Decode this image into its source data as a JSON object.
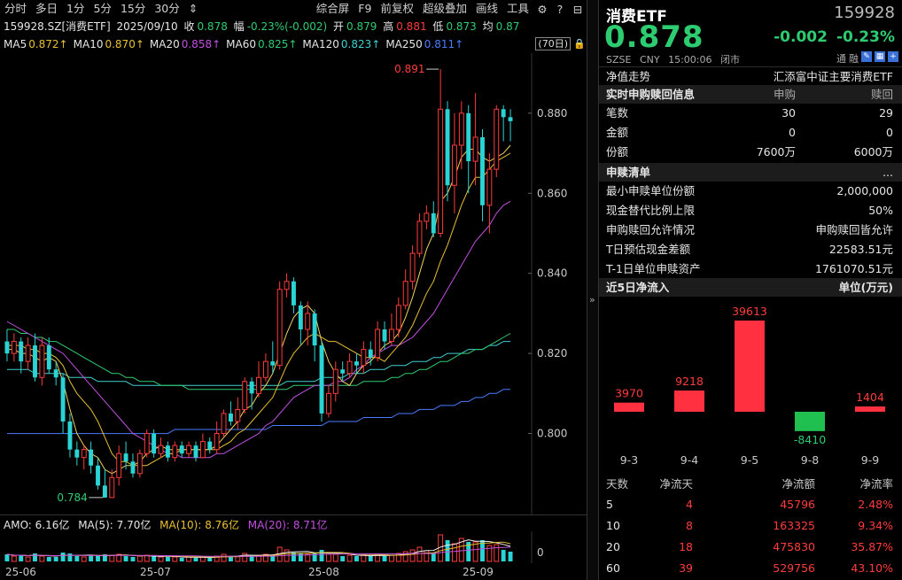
{
  "toolbar": {
    "left": [
      "分时",
      "多日",
      "1分",
      "5分",
      "15分",
      "30分",
      "⇕"
    ],
    "right": [
      "综合屏",
      "F9",
      "前复权",
      "超级叠加",
      "画线",
      "工具"
    ]
  },
  "info": {
    "code": "159928.SZ[消费ETF]",
    "date": "2025/09/10",
    "close_label": "收",
    "close": "0.878",
    "amp_label": "幅",
    "amp": "-0.23%(-0.002)",
    "open_label": "开",
    "open": "0.879",
    "high_label": "高",
    "high": "0.881",
    "low_label": "低",
    "low": "0.873",
    "avg_label": "均",
    "avg": "0.87"
  },
  "ma": [
    {
      "label": "MA5",
      "value": "0.872↑",
      "color": "#e8c030"
    },
    {
      "label": "MA10",
      "value": "0.870↑",
      "color": "#e8c030"
    },
    {
      "label": "MA20",
      "value": "0.858↑",
      "color": "#c050e0"
    },
    {
      "label": "MA60",
      "value": "0.825↑",
      "color": "#2ecc71"
    },
    {
      "label": "MA120",
      "value": "0.823↑",
      "color": "#40d0d0"
    },
    {
      "label": "MA250",
      "value": "0.811↑",
      "color": "#4a7cff"
    }
  ],
  "period_label": "(70日)",
  "annotations": {
    "high": "0.891",
    "low": "0.784"
  },
  "price_axis": {
    "ticks": [
      "0.880",
      "0.860",
      "0.840",
      "0.820",
      "0.800"
    ],
    "tick_values": [
      0.88,
      0.86,
      0.84,
      0.82,
      0.8
    ]
  },
  "chart_data": {
    "type": "candlestick",
    "y_range": [
      0.78,
      0.895
    ],
    "candles": [
      [
        0.823,
        0.82,
        0.826,
        0.818
      ],
      [
        0.82,
        0.823,
        0.825,
        0.818
      ],
      [
        0.823,
        0.818,
        0.824,
        0.815
      ],
      [
        0.818,
        0.822,
        0.824,
        0.816
      ],
      [
        0.822,
        0.814,
        0.825,
        0.813
      ],
      [
        0.814,
        0.822,
        0.824,
        0.812
      ],
      [
        0.822,
        0.816,
        0.824,
        0.815
      ],
      [
        0.816,
        0.814,
        0.818,
        0.812
      ],
      [
        0.814,
        0.803,
        0.815,
        0.8
      ],
      [
        0.803,
        0.796,
        0.805,
        0.794
      ],
      [
        0.796,
        0.794,
        0.798,
        0.792
      ],
      [
        0.794,
        0.796,
        0.797,
        0.791
      ],
      [
        0.796,
        0.792,
        0.798,
        0.79
      ],
      [
        0.792,
        0.787,
        0.794,
        0.786
      ],
      [
        0.787,
        0.784,
        0.791,
        0.784
      ],
      [
        0.784,
        0.789,
        0.791,
        0.784
      ],
      [
        0.789,
        0.795,
        0.797,
        0.787
      ],
      [
        0.795,
        0.793,
        0.798,
        0.791
      ],
      [
        0.793,
        0.79,
        0.795,
        0.789
      ],
      [
        0.79,
        0.795,
        0.796,
        0.789
      ],
      [
        0.795,
        0.8,
        0.801,
        0.794
      ],
      [
        0.8,
        0.795,
        0.801,
        0.794
      ],
      [
        0.795,
        0.797,
        0.799,
        0.794
      ],
      [
        0.797,
        0.794,
        0.798,
        0.793
      ],
      [
        0.794,
        0.797,
        0.798,
        0.793
      ],
      [
        0.797,
        0.795,
        0.798,
        0.794
      ],
      [
        0.795,
        0.797,
        0.798,
        0.794
      ],
      [
        0.797,
        0.794,
        0.798,
        0.793
      ],
      [
        0.794,
        0.798,
        0.8,
        0.794
      ],
      [
        0.798,
        0.796,
        0.799,
        0.795
      ],
      [
        0.796,
        0.8,
        0.803,
        0.795
      ],
      [
        0.8,
        0.805,
        0.806,
        0.799
      ],
      [
        0.805,
        0.803,
        0.808,
        0.802
      ],
      [
        0.803,
        0.806,
        0.809,
        0.801
      ],
      [
        0.806,
        0.813,
        0.814,
        0.805
      ],
      [
        0.813,
        0.81,
        0.814,
        0.806
      ],
      [
        0.81,
        0.814,
        0.818,
        0.809
      ],
      [
        0.814,
        0.818,
        0.82,
        0.813
      ],
      [
        0.818,
        0.817,
        0.823,
        0.815
      ],
      [
        0.817,
        0.836,
        0.838,
        0.816
      ],
      [
        0.836,
        0.838,
        0.84,
        0.834
      ],
      [
        0.838,
        0.832,
        0.839,
        0.83
      ],
      [
        0.832,
        0.826,
        0.833,
        0.822
      ],
      [
        0.826,
        0.83,
        0.833,
        0.822
      ],
      [
        0.83,
        0.822,
        0.831,
        0.818
      ],
      [
        0.822,
        0.805,
        0.823,
        0.803
      ],
      [
        0.805,
        0.81,
        0.812,
        0.804
      ],
      [
        0.81,
        0.816,
        0.818,
        0.808
      ],
      [
        0.816,
        0.815,
        0.818,
        0.813
      ],
      [
        0.815,
        0.818,
        0.82,
        0.814
      ],
      [
        0.818,
        0.817,
        0.82,
        0.815
      ],
      [
        0.817,
        0.821,
        0.823,
        0.815
      ],
      [
        0.821,
        0.819,
        0.823,
        0.817
      ],
      [
        0.819,
        0.826,
        0.828,
        0.818
      ],
      [
        0.826,
        0.823,
        0.828,
        0.821
      ],
      [
        0.823,
        0.826,
        0.83,
        0.822
      ],
      [
        0.826,
        0.832,
        0.834,
        0.824
      ],
      [
        0.832,
        0.838,
        0.841,
        0.831
      ],
      [
        0.838,
        0.845,
        0.847,
        0.836
      ],
      [
        0.845,
        0.853,
        0.855,
        0.844
      ],
      [
        0.853,
        0.855,
        0.857,
        0.851
      ],
      [
        0.855,
        0.85,
        0.858,
        0.849
      ],
      [
        0.85,
        0.881,
        0.891,
        0.849
      ],
      [
        0.881,
        0.862,
        0.883,
        0.858
      ],
      [
        0.862,
        0.872,
        0.88,
        0.855
      ],
      [
        0.872,
        0.88,
        0.883,
        0.866
      ],
      [
        0.88,
        0.868,
        0.882,
        0.86
      ],
      [
        0.868,
        0.874,
        0.885,
        0.862
      ],
      [
        0.874,
        0.857,
        0.876,
        0.853
      ],
      [
        0.857,
        0.866,
        0.87,
        0.85
      ],
      [
        0.866,
        0.881,
        0.882,
        0.864
      ],
      [
        0.881,
        0.879,
        0.882,
        0.873
      ],
      [
        0.879,
        0.878,
        0.881,
        0.873
      ]
    ],
    "ma5": [
      0.821,
      0.821,
      0.82,
      0.82,
      0.819,
      0.818,
      0.819,
      0.818,
      0.813,
      0.806,
      0.8,
      0.797,
      0.795,
      0.794,
      0.791,
      0.79,
      0.791,
      0.792,
      0.792,
      0.793,
      0.795,
      0.796,
      0.797,
      0.796,
      0.796,
      0.796,
      0.796,
      0.796,
      0.796,
      0.796,
      0.797,
      0.799,
      0.801,
      0.803,
      0.806,
      0.807,
      0.81,
      0.812,
      0.815,
      0.82,
      0.825,
      0.829,
      0.831,
      0.832,
      0.83,
      0.823,
      0.818,
      0.815,
      0.813,
      0.812,
      0.815,
      0.817,
      0.818,
      0.82,
      0.822,
      0.823,
      0.825,
      0.829,
      0.834,
      0.84,
      0.846,
      0.85,
      0.858,
      0.86,
      0.864,
      0.869,
      0.871,
      0.871,
      0.869,
      0.868,
      0.869,
      0.87,
      0.872
    ],
    "ma10": [
      0.822,
      0.822,
      0.822,
      0.821,
      0.821,
      0.82,
      0.82,
      0.819,
      0.817,
      0.813,
      0.81,
      0.808,
      0.806,
      0.803,
      0.799,
      0.795,
      0.793,
      0.793,
      0.792,
      0.792,
      0.792,
      0.793,
      0.794,
      0.795,
      0.795,
      0.796,
      0.796,
      0.796,
      0.796,
      0.796,
      0.796,
      0.797,
      0.798,
      0.8,
      0.801,
      0.803,
      0.805,
      0.807,
      0.809,
      0.813,
      0.817,
      0.82,
      0.822,
      0.824,
      0.825,
      0.824,
      0.823,
      0.823,
      0.822,
      0.821,
      0.82,
      0.819,
      0.819,
      0.819,
      0.818,
      0.82,
      0.822,
      0.824,
      0.827,
      0.831,
      0.835,
      0.838,
      0.843,
      0.847,
      0.852,
      0.857,
      0.861,
      0.864,
      0.864,
      0.866,
      0.868,
      0.869,
      0.87
    ],
    "ma20": [
      0.828,
      0.827,
      0.826,
      0.825,
      0.824,
      0.823,
      0.822,
      0.821,
      0.82,
      0.818,
      0.816,
      0.814,
      0.812,
      0.81,
      0.808,
      0.806,
      0.804,
      0.802,
      0.8,
      0.799,
      0.798,
      0.797,
      0.796,
      0.795,
      0.795,
      0.794,
      0.794,
      0.794,
      0.794,
      0.794,
      0.795,
      0.795,
      0.796,
      0.797,
      0.798,
      0.799,
      0.8,
      0.802,
      0.803,
      0.805,
      0.807,
      0.809,
      0.81,
      0.811,
      0.812,
      0.812,
      0.812,
      0.813,
      0.813,
      0.814,
      0.816,
      0.817,
      0.819,
      0.82,
      0.821,
      0.822,
      0.822,
      0.823,
      0.824,
      0.826,
      0.828,
      0.83,
      0.833,
      0.836,
      0.839,
      0.842,
      0.845,
      0.848,
      0.85,
      0.852,
      0.855,
      0.857,
      0.858
    ],
    "ma60": [
      0.826,
      0.826,
      0.825,
      0.825,
      0.824,
      0.824,
      0.823,
      0.823,
      0.822,
      0.821,
      0.82,
      0.819,
      0.818,
      0.817,
      0.816,
      0.815,
      0.815,
      0.814,
      0.814,
      0.813,
      0.813,
      0.813,
      0.812,
      0.812,
      0.812,
      0.812,
      0.811,
      0.811,
      0.811,
      0.811,
      0.811,
      0.811,
      0.811,
      0.811,
      0.811,
      0.811,
      0.811,
      0.811,
      0.811,
      0.811,
      0.811,
      0.812,
      0.812,
      0.812,
      0.812,
      0.812,
      0.812,
      0.812,
      0.812,
      0.812,
      0.812,
      0.813,
      0.813,
      0.813,
      0.813,
      0.814,
      0.814,
      0.815,
      0.815,
      0.816,
      0.816,
      0.817,
      0.818,
      0.818,
      0.819,
      0.82,
      0.82,
      0.821,
      0.821,
      0.822,
      0.823,
      0.824,
      0.825
    ],
    "ma120": [
      0.816,
      0.816,
      0.816,
      0.816,
      0.815,
      0.815,
      0.815,
      0.815,
      0.815,
      0.814,
      0.814,
      0.814,
      0.814,
      0.813,
      0.813,
      0.813,
      0.813,
      0.813,
      0.812,
      0.812,
      0.812,
      0.812,
      0.812,
      0.812,
      0.812,
      0.812,
      0.812,
      0.812,
      0.812,
      0.812,
      0.812,
      0.812,
      0.812,
      0.812,
      0.812,
      0.812,
      0.812,
      0.812,
      0.812,
      0.812,
      0.813,
      0.813,
      0.813,
      0.813,
      0.813,
      0.814,
      0.814,
      0.814,
      0.814,
      0.815,
      0.815,
      0.815,
      0.816,
      0.816,
      0.816,
      0.817,
      0.817,
      0.817,
      0.818,
      0.818,
      0.818,
      0.819,
      0.819,
      0.82,
      0.82,
      0.82,
      0.821,
      0.821,
      0.821,
      0.822,
      0.822,
      0.823,
      0.823
    ],
    "ma250": [
      0.8,
      0.8,
      0.8,
      0.8,
      0.8,
      0.8,
      0.8,
      0.8,
      0.8,
      0.8,
      0.8,
      0.8,
      0.8,
      0.8,
      0.8,
      0.8,
      0.8,
      0.8,
      0.8,
      0.8,
      0.8,
      0.8,
      0.8,
      0.8,
      0.801,
      0.801,
      0.801,
      0.801,
      0.801,
      0.801,
      0.801,
      0.801,
      0.801,
      0.801,
      0.801,
      0.801,
      0.801,
      0.801,
      0.802,
      0.802,
      0.802,
      0.802,
      0.802,
      0.802,
      0.802,
      0.802,
      0.803,
      0.803,
      0.803,
      0.803,
      0.803,
      0.804,
      0.804,
      0.804,
      0.804,
      0.804,
      0.805,
      0.805,
      0.805,
      0.806,
      0.806,
      0.806,
      0.807,
      0.807,
      0.807,
      0.808,
      0.808,
      0.809,
      0.809,
      0.81,
      0.81,
      0.811,
      0.811
    ],
    "volume": [
      0.8,
      0.6,
      0.7,
      0.5,
      0.9,
      0.6,
      0.5,
      0.5,
      1.0,
      0.9,
      0.6,
      0.5,
      0.6,
      0.7,
      0.8,
      0.7,
      0.8,
      0.6,
      0.5,
      0.6,
      0.7,
      0.6,
      0.5,
      0.5,
      0.5,
      0.4,
      0.5,
      0.4,
      0.5,
      0.4,
      0.6,
      0.8,
      0.6,
      0.6,
      0.9,
      0.6,
      0.7,
      0.8,
      0.7,
      1.6,
      1.3,
      1.0,
      0.9,
      0.8,
      0.9,
      1.3,
      0.8,
      0.8,
      0.6,
      0.7,
      0.6,
      0.7,
      0.6,
      0.8,
      0.6,
      0.7,
      0.9,
      1.1,
      1.3,
      1.6,
      1.2,
      1.0,
      3.0,
      2.4,
      2.0,
      2.6,
      2.2,
      2.2,
      2.4,
      1.8,
      1.9,
      1.3,
      1.1
    ]
  },
  "volume": {
    "amo": "AMO: 6.16亿",
    "ma5": "MA(5): 7.70亿",
    "ma10": "MA(10): 8.76亿",
    "ma20": "MA(20): 8.71亿",
    "axis_zero": "0",
    "colors": {
      "ma5": "#e8c030",
      "ma10": "#e8c030",
      "ma20": "#c050e0"
    }
  },
  "xaxis": [
    "25-06",
    "25-07",
    "25-08",
    "25-09"
  ],
  "quote": {
    "name": "消费ETF",
    "code": "159928",
    "price": "0.878",
    "change": "-0.002",
    "change_pct": "-0.23%",
    "exchange": "SZSE",
    "currency": "CNY",
    "time": "15:00:06",
    "status": "闭市",
    "flags": [
      "通",
      "融"
    ]
  },
  "nav_row": {
    "label": "净值走势",
    "value": "汇添富中证主要消费ETF"
  },
  "realtime": {
    "title": "实时申购赎回信息",
    "col_buy": "申购",
    "col_sell": "赎回",
    "rows": [
      {
        "label": "笔数",
        "buy": "30",
        "sell": "29"
      },
      {
        "label": "金额",
        "buy": "0",
        "sell": "0"
      },
      {
        "label": "份额",
        "buy": "7600万",
        "sell": "6000万"
      }
    ]
  },
  "list": {
    "title": "申赎清单",
    "more": "...",
    "rows": [
      {
        "label": "最小申赎单位份额",
        "value": "2,000,000"
      },
      {
        "label": "现金替代比例上限",
        "value": "50%"
      },
      {
        "label": "申购赎回允许情况",
        "value": "申购赎回皆允许"
      },
      {
        "label": "T日预估现金差额",
        "value": "22583.51元"
      },
      {
        "label": "T-1日单位申赎资产",
        "value": "1761070.51元"
      }
    ]
  },
  "flow": {
    "title": "近5日净流入",
    "unit": "单位(万元)",
    "chart_data": {
      "type": "bar",
      "categories": [
        "9-3",
        "9-4",
        "9-5",
        "9-8",
        "9-9"
      ],
      "values": [
        3970,
        9218,
        39613,
        -8410,
        1404
      ],
      "labels": [
        "3970",
        "9218",
        "39613",
        "-8410",
        "1404"
      ]
    },
    "table": {
      "headers": [
        "天数",
        "净流天",
        "净流额",
        "净流率"
      ],
      "rows": [
        [
          "5",
          "4",
          "45796",
          "2.48%"
        ],
        [
          "10",
          "8",
          "163325",
          "9.34%"
        ],
        [
          "20",
          "18",
          "475830",
          "35.87%"
        ],
        [
          "60",
          "39",
          "529756",
          "43.10%"
        ]
      ]
    }
  },
  "colors": {
    "up": "#ff3b3b",
    "down": "#2bd4d4",
    "flow_up": "#ff3040",
    "flow_down": "#20c050"
  }
}
